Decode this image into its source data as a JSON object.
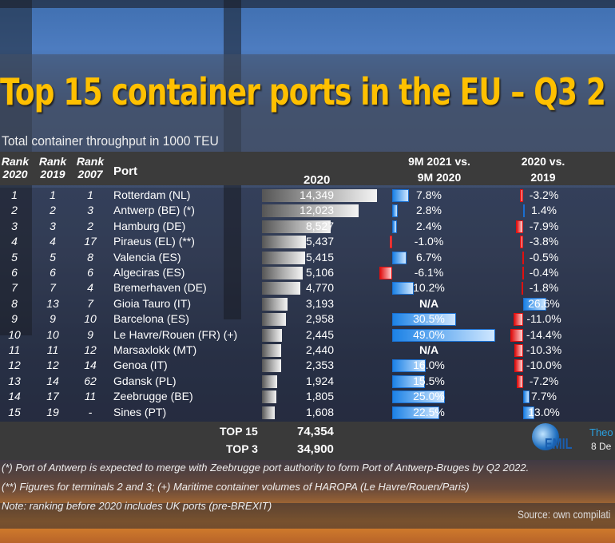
{
  "title": "Top 15 container ports in the EU – Q3 2",
  "subtitle": "Total container throughput in 1000 TEU",
  "colors": {
    "title": "#FFC000",
    "positive": "#1c82e6",
    "negative": "#e01010",
    "volume_bar": "#e0e0e0"
  },
  "headers": {
    "rank": "Rank",
    "y2020": "2020",
    "y2019": "2019",
    "y2007": "2007",
    "port": "Port",
    "volume": "2020",
    "g1_l1": "9M 2021 vs.",
    "g1_l2": "9M 2020",
    "g2_l1": "2020 vs.",
    "g2_l2": "2019"
  },
  "chart_data": {
    "type": "table",
    "columns": [
      "Rank 2020",
      "Rank 2019",
      "Rank 2007",
      "Port",
      "2020",
      "9M 2021 vs. 9M 2020",
      "2020 vs. 2019"
    ],
    "rows": [
      {
        "r20": "1",
        "r19": "1",
        "r07": "1",
        "port": "Rotterdam (NL)",
        "teu": 14349,
        "teu_label": "14,349",
        "g9m": 7.8,
        "g9m_label": "7.8%",
        "g20": -3.2,
        "g20_label": "-3.2%"
      },
      {
        "r20": "2",
        "r19": "2",
        "r07": "3",
        "port": "Antwerp (BE) (*)",
        "teu": 12023,
        "teu_label": "12,023",
        "g9m": 2.8,
        "g9m_label": "2.8%",
        "g20": 1.4,
        "g20_label": "1.4%"
      },
      {
        "r20": "3",
        "r19": "3",
        "r07": "2",
        "port": "Hamburg (DE)",
        "teu": 8527,
        "teu_label": "8,527",
        "g9m": 2.4,
        "g9m_label": "2.4%",
        "g20": -7.9,
        "g20_label": "-7.9%"
      },
      {
        "r20": "4",
        "r19": "4",
        "r07": "17",
        "port": "Piraeus (EL) (**)",
        "teu": 5437,
        "teu_label": "5,437",
        "g9m": -1.0,
        "g9m_label": "-1.0%",
        "g20": -3.8,
        "g20_label": "-3.8%"
      },
      {
        "r20": "5",
        "r19": "5",
        "r07": "8",
        "port": "Valencia (ES)",
        "teu": 5415,
        "teu_label": "5,415",
        "g9m": 6.7,
        "g9m_label": "6.7%",
        "g20": -0.5,
        "g20_label": "-0.5%"
      },
      {
        "r20": "6",
        "r19": "6",
        "r07": "6",
        "port": "Algeciras (ES)",
        "teu": 5106,
        "teu_label": "5,106",
        "g9m": -6.1,
        "g9m_label": "-6.1%",
        "g20": -0.4,
        "g20_label": "-0.4%"
      },
      {
        "r20": "7",
        "r19": "7",
        "r07": "4",
        "port": "Bremerhaven (DE)",
        "teu": 4770,
        "teu_label": "4,770",
        "g9m": 10.2,
        "g9m_label": "10.2%",
        "g20": -1.8,
        "g20_label": "-1.8%"
      },
      {
        "r20": "8",
        "r19": "13",
        "r07": "7",
        "port": "Gioia Tauro (IT)",
        "teu": 3193,
        "teu_label": "3,193",
        "g9m": null,
        "g9m_label": "N/A",
        "g20": 26.6,
        "g20_label": "26.6%"
      },
      {
        "r20": "9",
        "r19": "9",
        "r07": "10",
        "port": "Barcelona (ES)",
        "teu": 2958,
        "teu_label": "2,958",
        "g9m": 30.5,
        "g9m_label": "30.5%",
        "g20": -11.0,
        "g20_label": "-11.0%"
      },
      {
        "r20": "10",
        "r19": "10",
        "r07": "9",
        "port": "Le Havre/Rouen (FR) (+)",
        "teu": 2445,
        "teu_label": "2,445",
        "g9m": 49.0,
        "g9m_label": "49.0%",
        "g20": -14.4,
        "g20_label": "-14.4%"
      },
      {
        "r20": "11",
        "r19": "11",
        "r07": "12",
        "port": "Marsaxlokk (MT)",
        "teu": 2440,
        "teu_label": "2,440",
        "g9m": null,
        "g9m_label": "N/A",
        "g20": -10.3,
        "g20_label": "-10.3%"
      },
      {
        "r20": "12",
        "r19": "12",
        "r07": "14",
        "port": "Genoa (IT)",
        "teu": 2353,
        "teu_label": "2,353",
        "g9m": 16.0,
        "g9m_label": "16.0%",
        "g20": -10.0,
        "g20_label": "-10.0%"
      },
      {
        "r20": "13",
        "r19": "14",
        "r07": "62",
        "port": "Gdansk (PL)",
        "teu": 1924,
        "teu_label": "1,924",
        "g9m": 15.5,
        "g9m_label": "15.5%",
        "g20": -7.2,
        "g20_label": "-7.2%"
      },
      {
        "r20": "14",
        "r19": "17",
        "r07": "11",
        "port": "Zeebrugge (BE)",
        "teu": 1805,
        "teu_label": "1,805",
        "g9m": 25.0,
        "g9m_label": "25.0%",
        "g20": 7.7,
        "g20_label": "7.7%"
      },
      {
        "r20": "15",
        "r19": "19",
        "r07": "-",
        "port": "Sines (PT)",
        "teu": 1608,
        "teu_label": "1,608",
        "g9m": 22.5,
        "g9m_label": "22.5%",
        "g20": 13.0,
        "g20_label": "13.0%"
      }
    ]
  },
  "totals": {
    "top15_label": "TOP 15",
    "top15_value": "74,354",
    "top3_label": "TOP 3",
    "top3_value": "34,900"
  },
  "notes": [
    "(*) Port of Antwerp is expected to merge with Zeebrugge port authority to form Port of Antwerp-Bruges by Q2 2022.",
    "(**) Figures for terminals 2 and 3; (+) Maritime container volumes of HAROPA (Le Havre/Rouen/Paris)",
    "Note: ranking before 2020 includes UK ports (pre-BREXIT)"
  ],
  "source": "Source: own compilati",
  "logo": {
    "text": "EMIL",
    "line1": "Theo",
    "line2": "8 De"
  }
}
